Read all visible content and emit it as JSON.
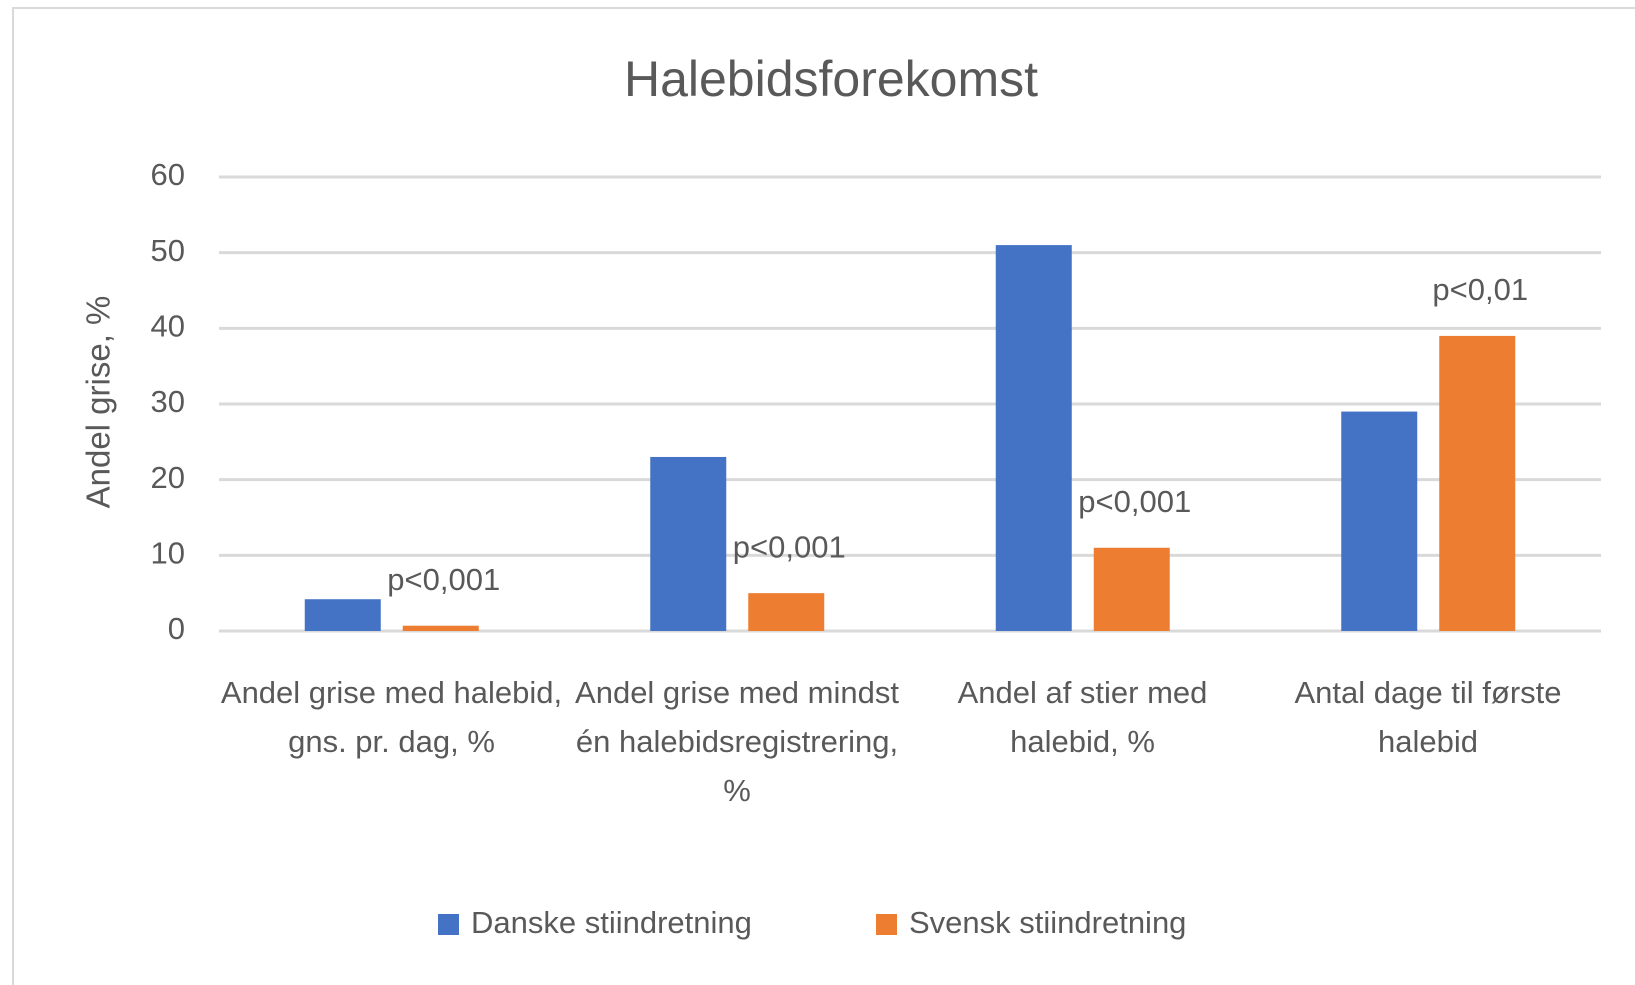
{
  "chart_data": {
    "type": "bar",
    "title": "Halebidsforekomst",
    "y_label": "Andel grise, %",
    "categories": [
      "Andel grise med halebid, gns. pr. dag, %",
      "Andel grise med mindst én halebidsregistrering, %",
      "Andel af stier med halebid, %",
      "Antal dage til første halebid"
    ],
    "series": [
      {
        "name": "Danske stiindretning",
        "color": "#4472c4",
        "values": [
          4.2,
          23,
          51,
          29
        ]
      },
      {
        "name": "Svensk stiindretning",
        "color": "#ed7d31",
        "values": [
          0.7,
          5,
          11,
          39
        ]
      }
    ],
    "annotations": [
      "p<0,001",
      "p<0,001",
      "p<0,001",
      "p<0,01"
    ],
    "ylim": [
      0,
      60
    ],
    "yticks": [
      0,
      10,
      20,
      30,
      40,
      50,
      60
    ],
    "grid": true,
    "legend": "bottom"
  }
}
